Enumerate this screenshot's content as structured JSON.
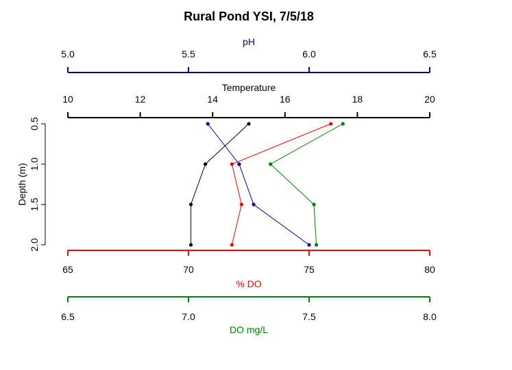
{
  "chart_data": {
    "type": "line",
    "title": "Rural Pond YSI, 7/5/18",
    "ylabel": "Depth (m)",
    "depth_ticks": [
      "0.5",
      "1.0",
      "1.5",
      "2.0"
    ],
    "depth_values": [
      0.5,
      1.0,
      1.5,
      2.0
    ],
    "ylim": [
      0.5,
      2.0
    ],
    "colors": {
      "ph": "#00008B",
      "temperature": "#000000",
      "do_percent": "#FF0000",
      "do_mgl": "#008000"
    },
    "axes": {
      "ph": {
        "label": "pH",
        "range": [
          5.0,
          6.5
        ],
        "ticks": [
          5.0,
          5.5,
          6.0,
          6.5
        ],
        "tick_labels": [
          "5.0",
          "5.5",
          "6.0",
          "6.5"
        ],
        "position": "top-outer"
      },
      "temperature": {
        "label": "Temperature",
        "range": [
          10,
          20
        ],
        "ticks": [
          10,
          12,
          14,
          16,
          18,
          20
        ],
        "tick_labels": [
          "10",
          "12",
          "14",
          "16",
          "18",
          "20"
        ],
        "position": "top-inner"
      },
      "do_percent": {
        "label": "% DO",
        "range": [
          65,
          80
        ],
        "ticks": [
          65,
          70,
          75,
          80
        ],
        "tick_labels": [
          "65",
          "70",
          "75",
          "80"
        ],
        "position": "bottom-inner"
      },
      "do_mgl": {
        "label": "DO mg/L",
        "range": [
          6.5,
          8.0
        ],
        "ticks": [
          6.5,
          7.0,
          7.5,
          8.0
        ],
        "tick_labels": [
          "6.5",
          "7.0",
          "7.5",
          "8.0"
        ],
        "position": "bottom-outer"
      }
    },
    "series": [
      {
        "key": "ph",
        "axis": "ph",
        "values": [
          5.58,
          5.71,
          5.77,
          6.0
        ]
      },
      {
        "key": "temperature",
        "axis": "temperature",
        "values": [
          15.0,
          13.8,
          13.4,
          13.4
        ]
      },
      {
        "key": "do_percent",
        "axis": "do_percent",
        "values": [
          75.9,
          71.8,
          72.2,
          71.8
        ]
      },
      {
        "key": "do_mgl",
        "axis": "do_mgl",
        "values": [
          7.64,
          7.34,
          7.52,
          7.53
        ]
      }
    ]
  }
}
